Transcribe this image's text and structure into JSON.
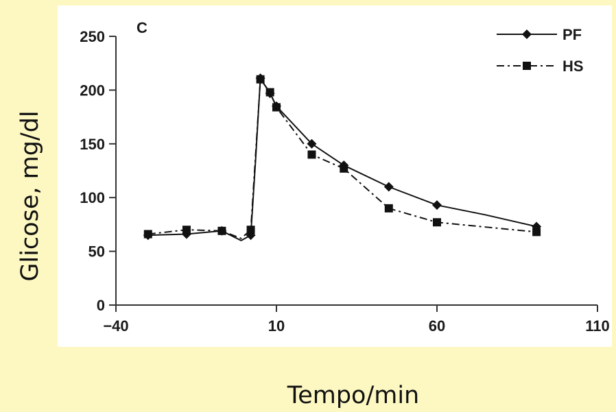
{
  "chart_data": {
    "type": "line",
    "panel_label": "C",
    "xlabel": "Tempo/min",
    "ylabel": "Glicose, mg/dl",
    "xlim": [
      -40,
      110
    ],
    "ylim": [
      0,
      250
    ],
    "xticks": [
      -40,
      10,
      60,
      110
    ],
    "yticks": [
      0,
      50,
      100,
      150,
      200,
      250
    ],
    "xtick_labels": [
      "−40",
      "10",
      "60",
      "110"
    ],
    "ytick_labels": [
      "0",
      "50",
      "100",
      "150",
      "200",
      "250"
    ],
    "grid": false,
    "legend_position": "top-right",
    "series": [
      {
        "name": "PF",
        "line_style": "solid",
        "marker": "diamond",
        "color": "#111111",
        "x": [
          -30,
          -18,
          -7,
          2,
          5,
          8,
          10,
          21,
          31,
          45,
          60,
          91
        ],
        "y": [
          65,
          66,
          69,
          65,
          211,
          197,
          185,
          150,
          130,
          110,
          93,
          73
        ],
        "curve_x": [
          -30,
          -18,
          -7,
          -1,
          2,
          3.5,
          5,
          8,
          10,
          21,
          31,
          45,
          60,
          75,
          91
        ],
        "curve_y": [
          65,
          66,
          69,
          60,
          65,
          135,
          211,
          197,
          185,
          150,
          130,
          110,
          93,
          84,
          73
        ]
      },
      {
        "name": "HS",
        "line_style": "dashdot",
        "marker": "square",
        "color": "#111111",
        "x": [
          -30,
          -18,
          -7,
          2,
          5,
          8,
          10,
          21,
          31,
          45,
          60,
          91
        ],
        "y": [
          66,
          70,
          69,
          70,
          210,
          198,
          184,
          140,
          127,
          90,
          77,
          68
        ],
        "curve_x": [
          -30,
          -18,
          -7,
          -1,
          2,
          3.5,
          5,
          8,
          10,
          21,
          31,
          45,
          60,
          91
        ],
        "curve_y": [
          66,
          70,
          69,
          62,
          70,
          140,
          210,
          198,
          184,
          140,
          127,
          90,
          77,
          68
        ]
      }
    ]
  }
}
